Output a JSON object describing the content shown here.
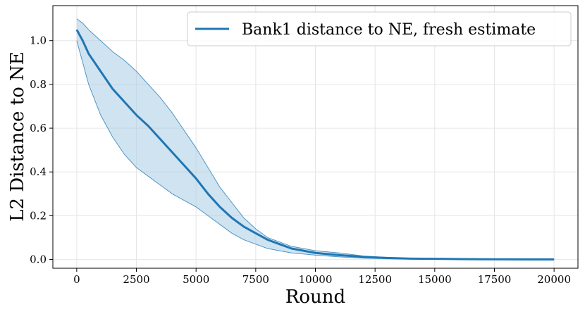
{
  "chart_data": {
    "type": "line",
    "xlabel": "Round",
    "ylabel": "L2 Distance to NE",
    "xlim": [
      -1000,
      21000
    ],
    "ylim": [
      -0.04,
      1.16
    ],
    "xticks": [
      0,
      2500,
      5000,
      7500,
      10000,
      12500,
      15000,
      17500,
      20000
    ],
    "xtick_labels": [
      "0",
      "2500",
      "5000",
      "7500",
      "10000",
      "12500",
      "15000",
      "17500",
      "20000"
    ],
    "yticks": [
      0.0,
      0.2,
      0.4,
      0.6,
      0.8,
      1.0
    ],
    "ytick_labels": [
      "0.0",
      "0.2",
      "0.4",
      "0.6",
      "0.8",
      "1.0"
    ],
    "grid": true,
    "legend_position": "top-right",
    "colors": {
      "line": "#1f77b4",
      "band_fill": "#aacce6",
      "band_edge": "#1f77b4",
      "grid": "#e6e6e6"
    },
    "series": [
      {
        "name": "Bank1 distance to NE, fresh estimate",
        "x": [
          0,
          250,
          500,
          1000,
          1500,
          2000,
          2500,
          3000,
          3500,
          4000,
          4500,
          5000,
          5500,
          6000,
          6500,
          7000,
          7500,
          8000,
          8500,
          9000,
          9500,
          10000,
          11000,
          12000,
          13000,
          14000,
          15000,
          16000,
          17000,
          18000,
          19000,
          20000
        ],
        "y": [
          1.05,
          1.0,
          0.94,
          0.86,
          0.78,
          0.72,
          0.66,
          0.61,
          0.55,
          0.49,
          0.43,
          0.37,
          0.3,
          0.24,
          0.19,
          0.15,
          0.12,
          0.09,
          0.07,
          0.05,
          0.04,
          0.03,
          0.02,
          0.012,
          0.007,
          0.004,
          0.003,
          0.002,
          0.001,
          0.0005,
          0.0003,
          0.0002
        ],
        "upper": [
          1.1,
          1.08,
          1.05,
          1.0,
          0.95,
          0.91,
          0.86,
          0.8,
          0.74,
          0.67,
          0.59,
          0.51,
          0.42,
          0.33,
          0.26,
          0.19,
          0.14,
          0.1,
          0.08,
          0.06,
          0.05,
          0.04,
          0.03,
          0.016,
          0.009,
          0.005,
          0.003,
          0.002,
          0.001,
          0.0005,
          0.0003,
          0.0002
        ],
        "lower": [
          1.0,
          0.9,
          0.8,
          0.66,
          0.56,
          0.48,
          0.42,
          0.38,
          0.34,
          0.3,
          0.27,
          0.24,
          0.2,
          0.16,
          0.12,
          0.09,
          0.07,
          0.05,
          0.04,
          0.03,
          0.025,
          0.02,
          0.012,
          0.006,
          0.003,
          0.002,
          0.001,
          0.0008,
          0.0005,
          0.0003,
          0.0002,
          0.0001
        ]
      }
    ]
  }
}
